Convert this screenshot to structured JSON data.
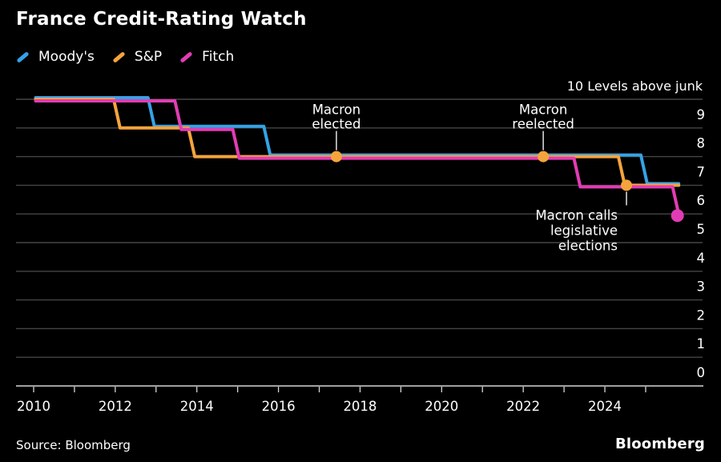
{
  "title": "France Credit-Rating Watch",
  "source": "Source: Bloomberg",
  "logo": "Bloomberg",
  "colors": {
    "background": "#000000",
    "text": "#ffffff",
    "gridline": "#454545",
    "axis": "#d6d6d6",
    "annotation_pointer": "#e3e3e3",
    "moodys": "#35A2E5",
    "sp": "#F5A43C",
    "fitch": "#E23CB4"
  },
  "chart_data": {
    "type": "line",
    "subtype": "step",
    "title": "France Credit-Rating Watch",
    "ylabel": "10 Levels above junk",
    "xlabel": "",
    "ylim": [
      0,
      10
    ],
    "y_ticks": [
      9,
      8,
      7,
      6,
      5,
      4,
      3,
      2,
      1,
      0
    ],
    "xlim": [
      2009.6,
      2026.4
    ],
    "x_ticks": [
      2010,
      2011,
      2012,
      2013,
      2014,
      2015,
      2016,
      2017,
      2018,
      2019,
      2020,
      2021,
      2022,
      2023,
      2024,
      2025
    ],
    "x_tick_labels": [
      "2010",
      "",
      "2012",
      "",
      "2014",
      "",
      "2016",
      "",
      "2018",
      "",
      "2020",
      "",
      "2022",
      "",
      "2024",
      ""
    ],
    "grid": true,
    "legend_position": "top-left",
    "units": "levels above junk",
    "series": [
      {
        "name": "Moody's",
        "color": "#35A2E5",
        "steps": [
          [
            2010.05,
            10
          ],
          [
            2012.88,
            9
          ],
          [
            2015.72,
            8
          ],
          [
            2024.96,
            7
          ]
        ],
        "end_year": 2025.81,
        "end_dot": false,
        "draw_offset": -2
      },
      {
        "name": "S&P",
        "color": "#F5A43C",
        "steps": [
          [
            2010.05,
            10
          ],
          [
            2012.04,
            9
          ],
          [
            2013.87,
            8
          ],
          [
            2024.41,
            7
          ]
        ],
        "end_year": 2025.81,
        "end_dot": false,
        "draw_offset": 0
      },
      {
        "name": "Fitch",
        "color": "#E23CB4",
        "steps": [
          [
            2010.05,
            10
          ],
          [
            2013.54,
            9
          ],
          [
            2014.96,
            8
          ],
          [
            2023.32,
            7
          ],
          [
            2025.74,
            6
          ]
        ],
        "end_year": 2025.78,
        "end_dot": true,
        "draw_offset": 2
      }
    ],
    "annotations": [
      {
        "lines": [
          "Macron",
          "elected"
        ],
        "year": 2017.42,
        "level": 8,
        "on_series": "S&P",
        "placement": "above",
        "align": "center",
        "dot_color": "#F5A43C"
      },
      {
        "lines": [
          "Macron",
          "reelected"
        ],
        "year": 2022.49,
        "level": 8,
        "on_series": "S&P",
        "placement": "above",
        "align": "center",
        "dot_color": "#F5A43C"
      },
      {
        "lines": [
          "Macron calls",
          "legislative",
          "elections"
        ],
        "year": 2024.53,
        "level": 7,
        "on_series": "S&P",
        "placement": "below",
        "align": "right",
        "dot_color": "#F5A43C"
      }
    ]
  }
}
